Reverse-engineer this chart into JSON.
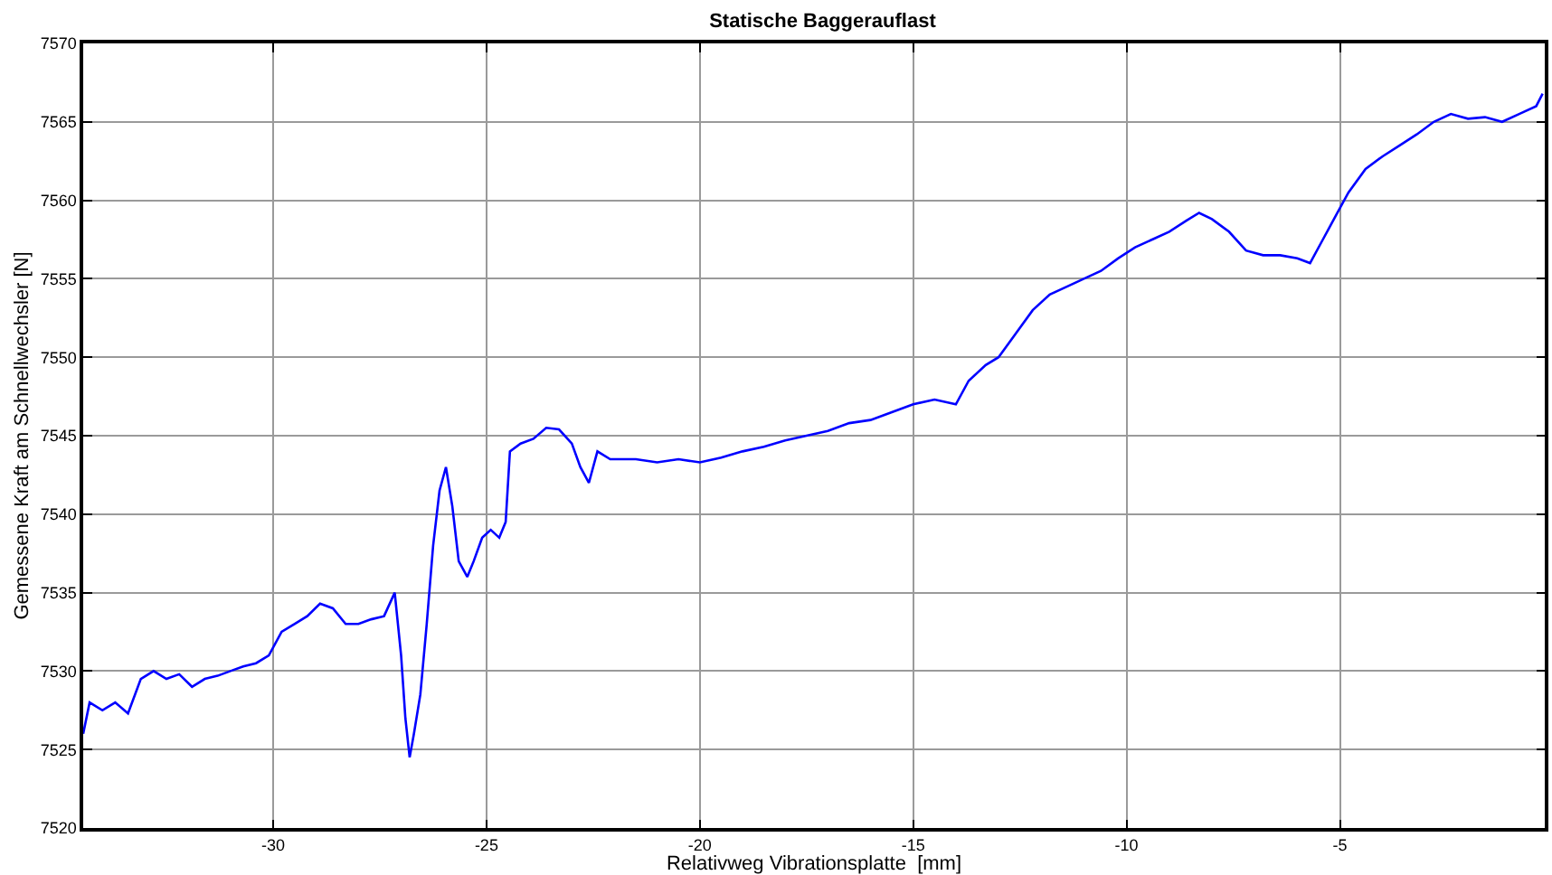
{
  "chart_data": {
    "type": "line",
    "title": "Statische Baggerauflast",
    "xlabel": "Relativweg Vibrationsplatte  [mm]",
    "ylabel": "Gemessene Kraft am Schnellwechsler [N]",
    "xlim": [
      -34.45,
      -0.2
    ],
    "xticks": [
      -30,
      -25,
      -20,
      -15,
      -10,
      -5
    ],
    "ylim": [
      7520,
      7570
    ],
    "yticks": [
      7520,
      7525,
      7530,
      7535,
      7540,
      7545,
      7550,
      7555,
      7560,
      7565,
      7570
    ],
    "grid": true,
    "marker": "none",
    "line_style": "solid",
    "series": [
      {
        "color": "#0000ff",
        "x": [
          -34.45,
          -34.3,
          -34.0,
          -33.7,
          -33.4,
          -33.1,
          -32.8,
          -32.5,
          -32.2,
          -31.9,
          -31.6,
          -31.3,
          -31.0,
          -30.7,
          -30.4,
          -30.1,
          -29.8,
          -29.5,
          -29.2,
          -28.9,
          -28.6,
          -28.3,
          -28.0,
          -27.7,
          -27.4,
          -27.15,
          -27.0,
          -26.9,
          -26.8,
          -26.7,
          -26.55,
          -26.4,
          -26.25,
          -26.1,
          -25.95,
          -25.8,
          -25.65,
          -25.45,
          -25.3,
          -25.1,
          -24.9,
          -24.7,
          -24.55,
          -24.45,
          -24.2,
          -23.9,
          -23.6,
          -23.3,
          -23.0,
          -22.8,
          -22.6,
          -22.4,
          -22.1,
          -21.5,
          -21.0,
          -20.5,
          -20.0,
          -19.5,
          -19.0,
          -18.5,
          -18.0,
          -17.5,
          -17.0,
          -16.5,
          -16.0,
          -15.5,
          -15.0,
          -14.5,
          -14.0,
          -13.7,
          -13.3,
          -13.0,
          -12.6,
          -12.2,
          -11.8,
          -11.4,
          -11.0,
          -10.6,
          -10.2,
          -9.8,
          -9.4,
          -9.0,
          -8.6,
          -8.3,
          -8.0,
          -7.6,
          -7.2,
          -6.8,
          -6.4,
          -6.0,
          -5.7,
          -5.4,
          -5.1,
          -4.8,
          -4.4,
          -4.0,
          -3.6,
          -3.2,
          -2.8,
          -2.4,
          -2.0,
          -1.6,
          -1.2,
          -0.8,
          -0.4,
          -0.25
        ],
        "values": [
          7526,
          7528,
          7527.5,
          7528,
          7527.3,
          7529.5,
          7530,
          7529.5,
          7529.8,
          7529,
          7529.5,
          7529.7,
          7530,
          7530.3,
          7530.5,
          7531,
          7532.5,
          7533,
          7533.5,
          7534.3,
          7534,
          7533,
          7533,
          7533.3,
          7533.5,
          7535,
          7531,
          7527,
          7524.5,
          7526,
          7528.5,
          7533,
          7538,
          7541.5,
          7543,
          7540.5,
          7537,
          7536,
          7537,
          7538.5,
          7539,
          7538.5,
          7539.5,
          7544,
          7544.5,
          7544.8,
          7545.5,
          7545.4,
          7544.5,
          7543,
          7542,
          7544,
          7543.5,
          7543.5,
          7543.3,
          7543.5,
          7543.3,
          7543.6,
          7544,
          7544.3,
          7544.7,
          7545,
          7545.3,
          7545.8,
          7546,
          7546.5,
          7547,
          7547.3,
          7547,
          7548.5,
          7549.5,
          7550,
          7551.5,
          7553,
          7554,
          7554.5,
          7555,
          7555.5,
          7556.3,
          7557,
          7557.5,
          7558,
          7558.7,
          7559.2,
          7558.8,
          7558,
          7556.8,
          7556.5,
          7556.5,
          7556.3,
          7556,
          7557.5,
          7559,
          7560.5,
          7562,
          7562.8,
          7563.5,
          7564.2,
          7565,
          7565.5,
          7565.2,
          7565.3,
          7565,
          7565.5,
          7566,
          7566.8
        ]
      }
    ]
  }
}
